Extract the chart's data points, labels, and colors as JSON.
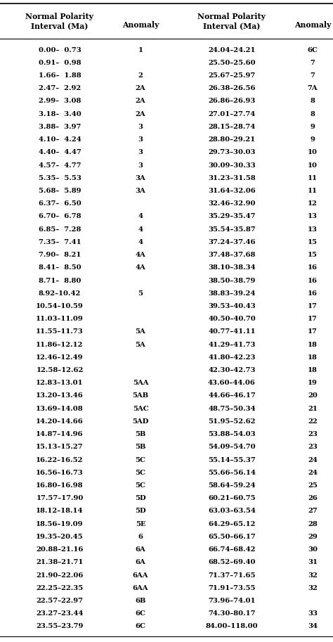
{
  "col_headers": [
    "Normal Polarity\nInterval (Ma)",
    "Anomaly",
    "Normal Polarity\nInterval (Ma)",
    "Anomaly"
  ],
  "rows": [
    [
      "0.00–  0.73",
      "1",
      "24.04–24.21",
      "6C"
    ],
    [
      "0.91–  0.98",
      "",
      "25.50–25.60",
      "7"
    ],
    [
      "1.66–  1.88",
      "2",
      "25.67–25.97",
      "7"
    ],
    [
      "2.47–  2.92",
      "2A",
      "26.38–26.56",
      "7A"
    ],
    [
      "2.99–  3.08",
      "2A",
      "26.86–26.93",
      "8"
    ],
    [
      "3.18–  3.40",
      "2A",
      "27.01–27.74",
      "8"
    ],
    [
      "3.88–  3.97",
      "3",
      "28.15–28.74",
      "9"
    ],
    [
      "4.10–  4.24",
      "3",
      "28.80–29.21",
      "9"
    ],
    [
      "4.40–  4.47",
      "3",
      "29.73–30.03",
      "10"
    ],
    [
      "4.57–  4.77",
      "3",
      "30.09–30.33",
      "10"
    ],
    [
      "5.35–  5.53",
      "3A",
      "31.23–31.58",
      "11"
    ],
    [
      "5.68–  5.89",
      "3A",
      "31.64–32.06",
      "11"
    ],
    [
      "6.37–  6.50",
      "",
      "32.46–32.90",
      "12"
    ],
    [
      "6.70–  6.78",
      "4",
      "35.29–35.47",
      "13"
    ],
    [
      "6.85–  7.28",
      "4",
      "35.54–35.87",
      "13"
    ],
    [
      "7.35–  7.41",
      "4",
      "37.24–37.46",
      "15"
    ],
    [
      "7.90–  8.21",
      "4A",
      "37.48–37.68",
      "15"
    ],
    [
      "8.41–  8.50",
      "4A",
      "38.10–38.34",
      "16"
    ],
    [
      "8.71–  8.80",
      "",
      "38.50–38.79",
      "16"
    ],
    [
      "8.92–10.42",
      "5",
      "38.83–39.24",
      "16"
    ],
    [
      "10.54–10.59",
      "",
      "39.53–40.43",
      "17"
    ],
    [
      "11.03–11.09",
      "",
      "40.50–40.70",
      "17"
    ],
    [
      "11.55–11.73",
      "5A",
      "40.77–41.11",
      "17"
    ],
    [
      "11.86–12.12",
      "5A",
      "41.29–41.73",
      "18"
    ],
    [
      "12.46–12.49",
      "",
      "41.80–42.23",
      "18"
    ],
    [
      "12.58–12.62",
      "",
      "42.30–42.73",
      "18"
    ],
    [
      "12.83–13.01",
      "5AA",
      "43.60–44.06",
      "19"
    ],
    [
      "13.20–13.46",
      "5AB",
      "44.66–46.17",
      "20"
    ],
    [
      "13.69–14.08",
      "5AC",
      "48.75–50.34",
      "21"
    ],
    [
      "14.20–14.66",
      "5AD",
      "51.95–52.62",
      "22"
    ],
    [
      "14.87–14.96",
      "5B",
      "53.88–54.03",
      "23"
    ],
    [
      "15.13–15.27",
      "5B",
      "54.09–54.70",
      "23"
    ],
    [
      "16.22–16.52",
      "5C",
      "55.14–55.37",
      "24"
    ],
    [
      "16.56–16.73",
      "5C",
      "55.66–56.14",
      "24"
    ],
    [
      "16.80–16.98",
      "5C",
      "58.64–59.24",
      "25"
    ],
    [
      "17.57–17.90",
      "5D",
      "60.21–60.75",
      "26"
    ],
    [
      "18.12–18.14",
      "5D",
      "63.03–63.54",
      "27"
    ],
    [
      "18.56–19.09",
      "5E",
      "64.29–65.12",
      "28"
    ],
    [
      "19.35–20.45",
      "6",
      "65.50–66.17",
      "29"
    ],
    [
      "20.88–21.16",
      "6A",
      "66.74–68.42",
      "30"
    ],
    [
      "21.38–21.71",
      "6A",
      "68.52–69.40",
      "31"
    ],
    [
      "21.90–22.06",
      "6AA",
      "71.37–71.65",
      "32"
    ],
    [
      "22.25–22.35",
      "6AA",
      "71.91–73.55",
      "32"
    ],
    [
      "22.57–22.97",
      "6B",
      "73.96–74.01",
      ""
    ],
    [
      "23.27–23.44",
      "6C",
      "74.30–80.17",
      "33"
    ],
    [
      "23.55–23.79",
      "6C",
      "84.00–118.00",
      "34"
    ]
  ],
  "bg_color": "#ffffff",
  "text_color": "#000000",
  "font_size": 7.2,
  "header_font_size": 7.8,
  "figwidth": 4.74,
  "figheight": 9.13,
  "dpi": 100
}
